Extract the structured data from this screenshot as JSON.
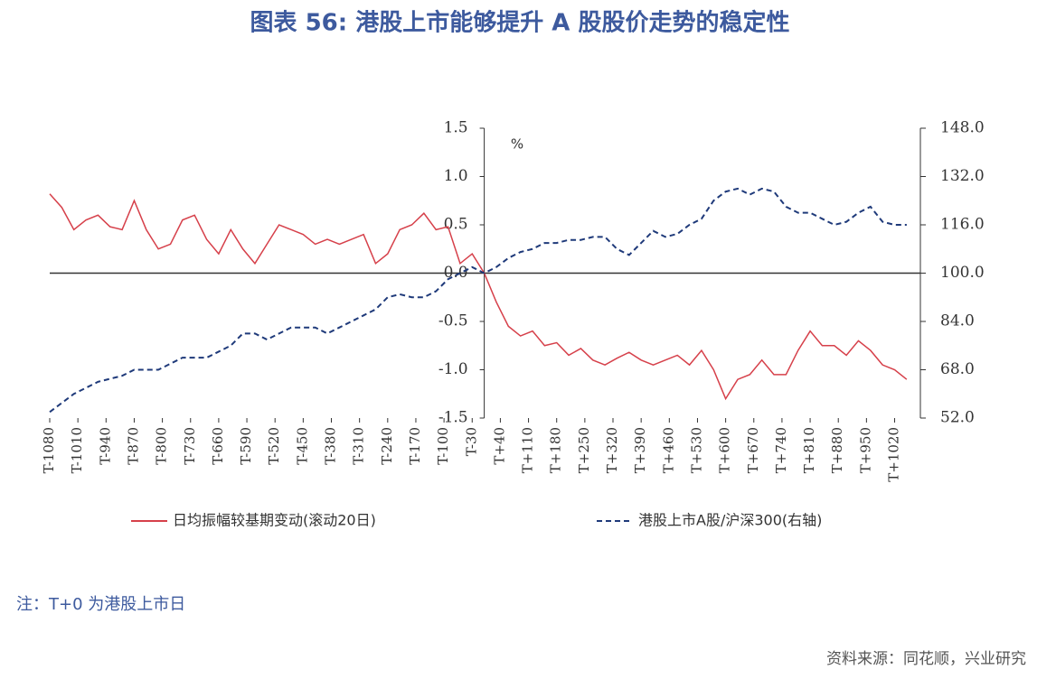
{
  "chart_data": {
    "type": "line",
    "title": "图表 56: 港股上市能够提升 A 股股价走势的稳定性",
    "y_unit": "%",
    "note": "注：T+0 为港股上市日",
    "source": "资料来源：同花顺，兴业研究",
    "x": [
      -1080,
      -1050,
      -1020,
      -990,
      -960,
      -930,
      -900,
      -870,
      -840,
      -810,
      -780,
      -750,
      -720,
      -690,
      -660,
      -630,
      -600,
      -570,
      -540,
      -510,
      -480,
      -450,
      -420,
      -390,
      -360,
      -330,
      -300,
      -270,
      -240,
      -210,
      -180,
      -150,
      -120,
      -90,
      -60,
      -30,
      0,
      30,
      60,
      90,
      120,
      150,
      180,
      210,
      240,
      270,
      300,
      330,
      360,
      390,
      420,
      450,
      480,
      510,
      540,
      570,
      600,
      630,
      660,
      690,
      720,
      750,
      780,
      810,
      840,
      870,
      900,
      930,
      960,
      990,
      1020,
      1050
    ],
    "series": [
      {
        "name": "日均振幅较基期变动(滚动20日)",
        "color": "#d6404a",
        "dash": false,
        "values": [
          0.82,
          0.68,
          0.45,
          0.55,
          0.6,
          0.48,
          0.45,
          0.75,
          0.45,
          0.25,
          0.3,
          0.55,
          0.6,
          0.35,
          0.2,
          0.45,
          0.25,
          0.1,
          0.3,
          0.5,
          0.45,
          0.4,
          0.3,
          0.35,
          0.3,
          0.35,
          0.4,
          0.1,
          0.2,
          0.45,
          0.5,
          0.62,
          0.45,
          0.48,
          0.1,
          0.2,
          0,
          -0.3,
          -0.55,
          -0.65,
          -0.6,
          -0.75,
          -0.72,
          -0.85,
          -0.78,
          -0.9,
          -0.95,
          -0.88,
          -0.82,
          -0.9,
          -0.95,
          -0.9,
          -0.85,
          -0.95,
          -0.8,
          -1.0,
          -1.3,
          -1.1,
          -1.05,
          -0.9,
          -1.05,
          -1.05,
          -0.8,
          -0.6,
          -0.75,
          -0.75,
          -0.85,
          -0.7,
          -0.8,
          -0.95,
          -1.0,
          -1.1
        ]
      },
      {
        "name": "港股上市A股/沪深300(右轴)",
        "color": "#1f3a7a",
        "dash": true,
        "axis": "y2",
        "values": [
          54,
          57,
          60,
          62,
          64,
          65,
          66,
          68,
          68,
          68,
          70,
          72,
          72,
          72,
          74,
          76,
          80,
          80,
          78,
          80,
          82,
          82,
          82,
          80,
          82,
          84,
          86,
          88,
          92,
          93,
          92,
          92,
          94,
          98,
          100,
          102,
          100,
          102,
          105,
          107,
          108,
          110,
          110,
          111,
          111,
          112,
          112,
          108,
          106,
          110,
          114,
          112,
          113,
          116,
          118,
          124,
          127,
          128,
          126,
          128,
          127,
          122,
          120,
          120,
          118,
          116,
          117,
          120,
          122,
          117,
          116,
          116
        ]
      }
    ],
    "xlim": [
      -1080,
      1084
    ],
    "xticks": [
      {
        "value": -1080,
        "label": "T-1080"
      },
      {
        "value": -1010,
        "label": "T-1010"
      },
      {
        "value": -940,
        "label": "T-940"
      },
      {
        "value": -870,
        "label": "T-870"
      },
      {
        "value": -800,
        "label": "T-800"
      },
      {
        "value": -730,
        "label": "T-730"
      },
      {
        "value": -660,
        "label": "T-660"
      },
      {
        "value": -590,
        "label": "T-590"
      },
      {
        "value": -520,
        "label": "T-520"
      },
      {
        "value": -450,
        "label": "T-450"
      },
      {
        "value": -380,
        "label": "T-380"
      },
      {
        "value": -310,
        "label": "T-310"
      },
      {
        "value": -240,
        "label": "T-240"
      },
      {
        "value": -170,
        "label": "T-170"
      },
      {
        "value": -100,
        "label": "T-100"
      },
      {
        "value": -30,
        "label": "T-30"
      },
      {
        "value": 40,
        "label": "T+40"
      },
      {
        "value": 110,
        "label": "T+110"
      },
      {
        "value": 180,
        "label": "T+180"
      },
      {
        "value": 250,
        "label": "T+250"
      },
      {
        "value": 320,
        "label": "T+320"
      },
      {
        "value": 390,
        "label": "T+390"
      },
      {
        "value": 460,
        "label": "T+460"
      },
      {
        "value": 530,
        "label": "T+530"
      },
      {
        "value": 600,
        "label": "T+600"
      },
      {
        "value": 670,
        "label": "T+670"
      },
      {
        "value": 740,
        "label": "T+740"
      },
      {
        "value": 810,
        "label": "T+810"
      },
      {
        "value": 880,
        "label": "T+880"
      },
      {
        "value": 950,
        "label": "T+950"
      },
      {
        "value": 1020,
        "label": "T+1020"
      }
    ],
    "ylim": [
      -1.5,
      1.5
    ],
    "yticks": [
      -1.5,
      {
        "value": -1,
        "label": "-1.0"
      },
      -0.5,
      {
        "value": 0,
        "label": "0.0"
      },
      0.5,
      {
        "value": 1,
        "label": "1.0"
      },
      1.5
    ],
    "y2lim": [
      52,
      148
    ],
    "y2ticks": [
      {
        "value": 52,
        "label": "52.0"
      },
      {
        "value": 68,
        "label": "68.0"
      },
      {
        "value": 84,
        "label": "84.0"
      },
      {
        "value": 100,
        "label": "100.0"
      },
      {
        "value": 116,
        "label": "116.0"
      },
      {
        "value": 132,
        "label": "132.0"
      },
      {
        "value": 148,
        "label": "148.0"
      }
    ]
  }
}
